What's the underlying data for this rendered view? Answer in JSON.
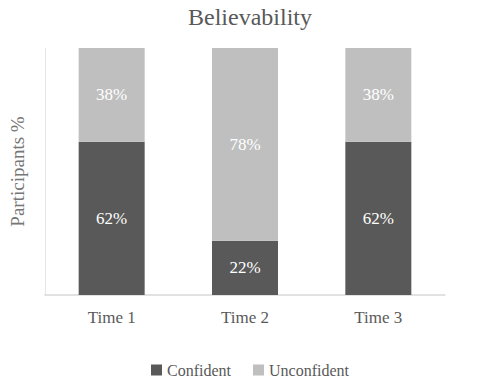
{
  "chart_data": {
    "type": "bar",
    "title": "Believability",
    "y_label": "Participants %",
    "categories": [
      "Time 1",
      "Time 2",
      "Time 3"
    ],
    "series": [
      {
        "name": "Confident",
        "color": "#595959",
        "values": [
          62,
          22,
          62
        ],
        "value_labels": [
          "62%",
          "22%",
          "62%"
        ]
      },
      {
        "name": "Unconfident",
        "color": "#bfbfbf",
        "values": [
          38,
          78,
          38
        ],
        "value_labels": [
          "38%",
          "78%",
          "38%"
        ]
      }
    ],
    "stacked": true,
    "data_labels": true,
    "ylim": [
      0,
      100
    ],
    "tick_labels": "x",
    "legend": "bottom",
    "grid": false
  }
}
